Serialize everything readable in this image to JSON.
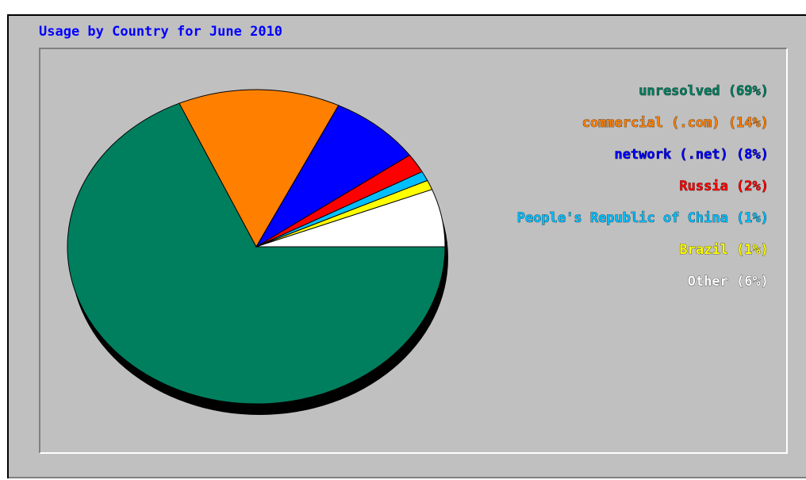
{
  "chart_data": {
    "type": "pie",
    "title": "Usage by Country for June 2010",
    "slices": [
      {
        "label": "unresolved (69%)",
        "value": 69,
        "color": "#007f5f"
      },
      {
        "label": "commercial (.com) (14%)",
        "value": 14,
        "color": "#ff8000"
      },
      {
        "label": "network (.net) (8%)",
        "value": 8,
        "color": "#0000ff"
      },
      {
        "label": "Russia (2%)",
        "value": 2,
        "color": "#ff0000"
      },
      {
        "label": "People's Republic of China (1%)",
        "value": 1,
        "color": "#00bfff"
      },
      {
        "label": "Brazil (1%)",
        "value": 1,
        "color": "#ffff00"
      },
      {
        "label": "Other (6%)",
        "value": 6,
        "color": "#ffffff"
      }
    ],
    "legend_position": "right",
    "legend_label_color_map": {
      "unresolved (69%)": "#007f5f",
      "commercial (.com) (14%)": "#ff8000",
      "network (.net) (8%)": "#0000ff",
      "Russia (2%)": "#ff0000",
      "People's Republic of China (1%)": "#00bfff",
      "Brazil (1%)": "#ffff00",
      "Other (6%)": "#ffffff"
    }
  },
  "colors": {
    "title": "#0000ff",
    "panel_background": "#c0c0c0",
    "shadow": "#000000"
  }
}
